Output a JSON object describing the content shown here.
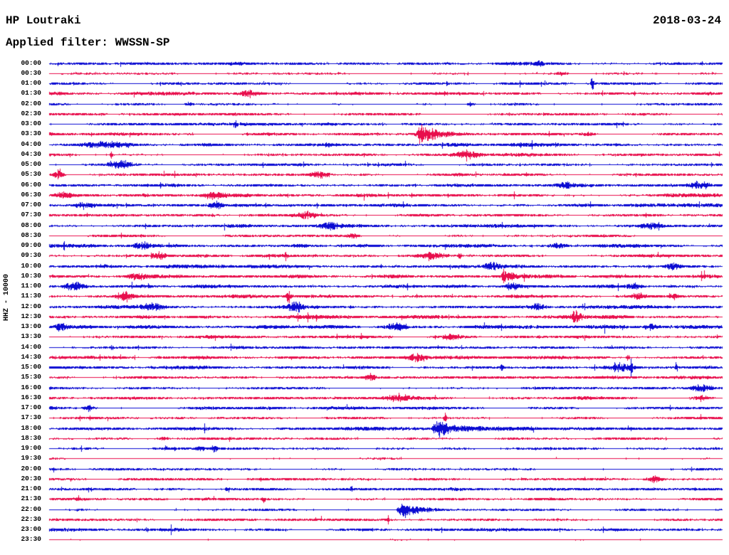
{
  "header": {
    "station": "HP Loutraki",
    "date": "2018-03-24",
    "filter": "Applied filter: WWSSN-SP"
  },
  "axis": {
    "scale_label": "HHZ - 10000",
    "row_labels_start": "00:00",
    "row_labels_end": "23:30"
  },
  "colors": {
    "blue": "#0b0bd2",
    "red": "#e80e4c",
    "text": "#000000",
    "background": "#ffffff"
  },
  "chart_data": {
    "type": "line",
    "title": "Helicorder day plot - HP Loutraki - 2018-03-24 - WWSSN-SP filtered - channel HHZ, scale 10000",
    "row_interval_minutes": 30,
    "rows_total": 48,
    "trace_color_cycle": [
      "blue",
      "red"
    ],
    "event_format": "[position_fraction_of_row, amplitude_px, width_px, kind: b=noise-burst s=spike q=earthquake(sharp onset + decaying coda)]",
    "rows": [
      {
        "t": "00:00",
        "c": "blue",
        "n": 1.4,
        "e": [
          [
            0.728,
            4,
            3,
            "b"
          ]
        ]
      },
      {
        "t": "00:30",
        "c": "red",
        "n": 0.55,
        "e": [
          [
            0.762,
            2.5,
            5,
            "b"
          ]
        ]
      },
      {
        "t": "01:00",
        "c": "blue",
        "n": 0.9,
        "e": [
          [
            0.806,
            12,
            1.5,
            "s"
          ]
        ]
      },
      {
        "t": "01:30",
        "c": "red",
        "n": 1.3,
        "e": [
          [
            0.297,
            5,
            9,
            "b"
          ]
        ]
      },
      {
        "t": "02:00",
        "c": "blue",
        "n": 0.7,
        "e": [
          [
            0.207,
            3,
            3,
            "b"
          ],
          [
            0.625,
            2.5,
            3,
            "b"
          ]
        ]
      },
      {
        "t": "02:30",
        "c": "red",
        "n": 0.95,
        "e": []
      },
      {
        "t": "03:00",
        "c": "blue",
        "n": 1.1,
        "e": [
          [
            0.276,
            6,
            2,
            "s"
          ]
        ]
      },
      {
        "t": "03:30",
        "c": "red",
        "n": 1.1,
        "e": [
          [
            0.551,
            14,
            10,
            "q"
          ],
          [
            0.799,
            3,
            6,
            "b"
          ]
        ]
      },
      {
        "t": "04:00",
        "c": "blue",
        "n": 1.4,
        "e": [
          [
            0.08,
            3,
            25,
            "b"
          ],
          [
            0.413,
            4,
            2,
            "s"
          ]
        ]
      },
      {
        "t": "04:30",
        "c": "red",
        "n": 1.1,
        "e": [
          [
            0.092,
            6,
            1.5,
            "s"
          ],
          [
            0.62,
            5,
            11,
            "b"
          ]
        ]
      },
      {
        "t": "05:00",
        "c": "blue",
        "n": 1.25,
        "e": [
          [
            0.107,
            5,
            11,
            "b"
          ]
        ]
      },
      {
        "t": "05:30",
        "c": "red",
        "n": 1.1,
        "e": [
          [
            0.013,
            9,
            4,
            "b"
          ],
          [
            0.402,
            5,
            9,
            "b"
          ]
        ]
      },
      {
        "t": "06:00",
        "c": "blue",
        "n": 1.25,
        "e": [
          [
            0.765,
            4,
            8,
            "b"
          ],
          [
            0.966,
            5,
            9,
            "b"
          ]
        ]
      },
      {
        "t": "06:30",
        "c": "red",
        "n": 1.4,
        "e": [
          [
            0.022,
            4,
            8,
            "b"
          ],
          [
            0.243,
            5,
            10,
            "b"
          ]
        ]
      },
      {
        "t": "07:00",
        "c": "blue",
        "n": 1.45,
        "e": [
          [
            0.053,
            5,
            9,
            "b"
          ],
          [
            0.247,
            4,
            7,
            "b"
          ]
        ]
      },
      {
        "t": "07:30",
        "c": "red",
        "n": 1.15,
        "e": [
          [
            0.381,
            5,
            11,
            "b"
          ]
        ]
      },
      {
        "t": "08:00",
        "c": "blue",
        "n": 1.25,
        "e": [
          [
            0.418,
            4,
            9,
            "b"
          ],
          [
            0.893,
            4,
            9,
            "b"
          ]
        ]
      },
      {
        "t": "08:30",
        "c": "red",
        "n": 0.85,
        "e": [
          [
            0.45,
            3,
            6,
            "b"
          ]
        ]
      },
      {
        "t": "09:00",
        "c": "blue",
        "n": 1.45,
        "e": [
          [
            0.138,
            4,
            9,
            "b"
          ],
          [
            0.756,
            4,
            8,
            "b"
          ]
        ]
      },
      {
        "t": "09:30",
        "c": "red",
        "n": 1.25,
        "e": [
          [
            0.163,
            5,
            7,
            "b"
          ],
          [
            0.351,
            4,
            1.5,
            "s"
          ],
          [
            0.57,
            4,
            12,
            "b"
          ],
          [
            0.609,
            6,
            2,
            "s"
          ]
        ]
      },
      {
        "t": "10:00",
        "c": "blue",
        "n": 1.45,
        "e": [
          [
            0.657,
            6,
            7,
            "b"
          ],
          [
            0.926,
            4,
            7,
            "b"
          ]
        ]
      },
      {
        "t": "10:30",
        "c": "red",
        "n": 1.5,
        "e": [
          [
            0.129,
            4,
            8,
            "b"
          ],
          [
            0.675,
            8,
            2,
            "s"
          ],
          [
            0.683,
            5,
            7,
            "b"
          ]
        ]
      },
      {
        "t": "11:00",
        "c": "blue",
        "n": 1.45,
        "e": [
          [
            0.038,
            7,
            9,
            "b"
          ],
          [
            0.688,
            4,
            7,
            "b"
          ],
          [
            0.868,
            4,
            7,
            "b"
          ]
        ]
      },
      {
        "t": "11:30",
        "c": "red",
        "n": 1.4,
        "e": [
          [
            0.112,
            9,
            7,
            "b"
          ],
          [
            0.354,
            5,
            3,
            "b"
          ],
          [
            0.874,
            4,
            6,
            "b"
          ],
          [
            0.928,
            4,
            4,
            "b"
          ]
        ]
      },
      {
        "t": "12:00",
        "c": "blue",
        "n": 1.5,
        "e": [
          [
            0.154,
            5,
            10,
            "b"
          ],
          [
            0.365,
            6,
            7,
            "b"
          ],
          [
            0.726,
            4,
            7,
            "b"
          ]
        ]
      },
      {
        "t": "12:30",
        "c": "red",
        "n": 1.5,
        "e": [
          [
            0.781,
            7,
            6,
            "b"
          ]
        ]
      },
      {
        "t": "13:00",
        "c": "blue",
        "n": 1.5,
        "e": [
          [
            0.017,
            5,
            7,
            "b"
          ],
          [
            0.514,
            6,
            10,
            "b"
          ],
          [
            0.894,
            4,
            7,
            "b"
          ]
        ]
      },
      {
        "t": "13:30",
        "c": "red",
        "n": 1.1,
        "e": [
          [
            0.598,
            4,
            10,
            "b"
          ]
        ]
      },
      {
        "t": "14:00",
        "c": "blue",
        "n": 1.1,
        "e": []
      },
      {
        "t": "14:30",
        "c": "red",
        "n": 1.15,
        "e": [
          [
            0.546,
            5,
            8,
            "b"
          ],
          [
            0.859,
            5,
            1.5,
            "s"
          ]
        ]
      },
      {
        "t": "15:00",
        "c": "blue",
        "n": 1.25,
        "e": [
          [
            0.672,
            4,
            2,
            "s"
          ],
          [
            0.853,
            6,
            9,
            "b"
          ],
          [
            0.864,
            13,
            1.2,
            "s"
          ],
          [
            0.931,
            12,
            1.2,
            "s"
          ]
        ]
      },
      {
        "t": "15:30",
        "c": "red",
        "n": 1.15,
        "e": [
          [
            0.477,
            4,
            5,
            "b"
          ]
        ]
      },
      {
        "t": "16:00",
        "c": "blue",
        "n": 1.15,
        "e": [
          [
            0.968,
            5,
            9,
            "b"
          ]
        ]
      },
      {
        "t": "16:30",
        "c": "red",
        "n": 1.25,
        "e": [
          [
            0.519,
            5,
            11,
            "b"
          ],
          [
            0.968,
            4,
            7,
            "b"
          ]
        ]
      },
      {
        "t": "17:00",
        "c": "blue",
        "n": 1.15,
        "e": [
          [
            0.059,
            4,
            5,
            "b"
          ]
        ]
      },
      {
        "t": "17:30",
        "c": "red",
        "n": 0.9,
        "e": [
          [
            0.588,
            6,
            1.8,
            "s"
          ]
        ]
      },
      {
        "t": "18:00",
        "c": "blue",
        "n": 1.4,
        "e": [
          [
            0.576,
            12,
            12,
            "q"
          ]
        ]
      },
      {
        "t": "18:30",
        "c": "red",
        "n": 0.85,
        "e": [
          [
            0.17,
            2,
            6,
            "b"
          ]
        ]
      },
      {
        "t": "19:00",
        "c": "blue",
        "n": 0.85,
        "e": [
          [
            0.173,
            4,
            1.5,
            "s"
          ],
          [
            0.186,
            3,
            1.5,
            "s"
          ],
          [
            0.225,
            3,
            6,
            "b"
          ],
          [
            0.245,
            4,
            4,
            "b"
          ]
        ]
      },
      {
        "t": "19:30",
        "c": "red",
        "n": 0.5,
        "e": []
      },
      {
        "t": "20:00",
        "c": "blue",
        "n": 0.75,
        "e": []
      },
      {
        "t": "20:30",
        "c": "red",
        "n": 0.85,
        "e": [
          [
            0.898,
            5,
            7,
            "b"
          ]
        ]
      },
      {
        "t": "21:00",
        "c": "blue",
        "n": 1.25,
        "e": [
          [
            0.265,
            5,
            2,
            "s"
          ]
        ]
      },
      {
        "t": "21:30",
        "c": "red",
        "n": 1.05,
        "e": [
          [
            0.318,
            6,
            1.8,
            "s"
          ]
        ]
      },
      {
        "t": "22:00",
        "c": "blue",
        "n": 0.75,
        "e": [
          [
            0.522,
            13,
            9,
            "q"
          ]
        ]
      },
      {
        "t": "22:30",
        "c": "red",
        "n": 1.05,
        "e": [
          [
            0.503,
            7,
            1.5,
            "s"
          ]
        ]
      },
      {
        "t": "23:00",
        "c": "blue",
        "n": 1.15,
        "e": []
      },
      {
        "t": "23:30",
        "c": "red",
        "n": 0.35,
        "e": []
      }
    ]
  }
}
